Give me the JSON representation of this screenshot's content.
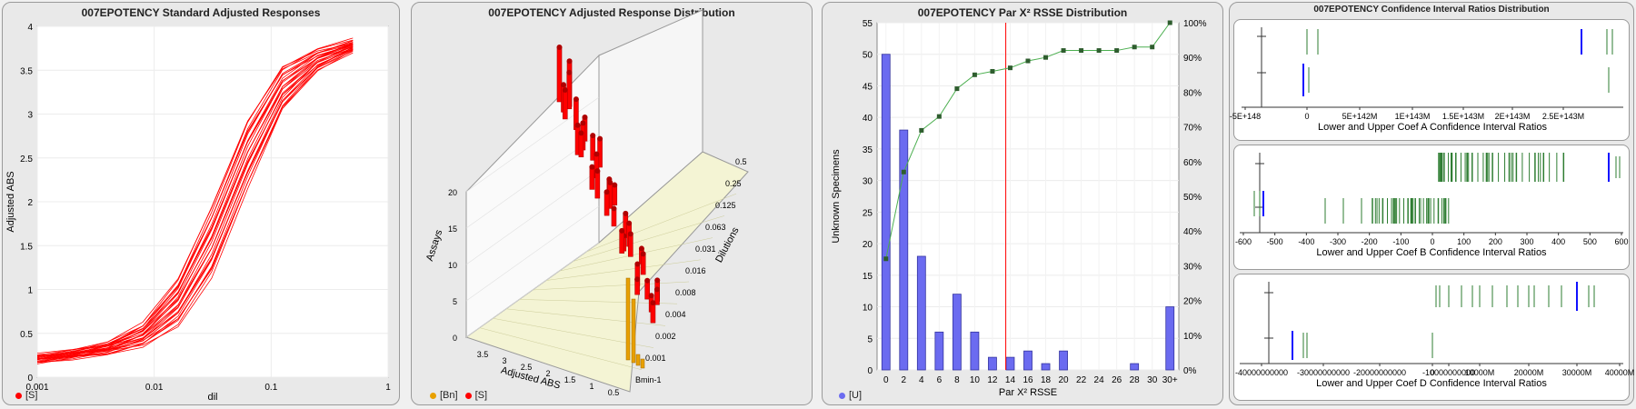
{
  "colors": {
    "red": "#ff0000",
    "darkred": "#b00000",
    "orange": "#e8a000",
    "blue": "#6b6bf0",
    "green": "#2e7d32",
    "ciblue": "#1010ff"
  },
  "panel1": {
    "title": "007EPOTENCY Standard Adjusted Responses",
    "legend": "[S]"
  },
  "panel2": {
    "title": "007EPOTENCY Adjusted Response Distribution",
    "legend_bn": "[Bn]",
    "legend_s": "[S]"
  },
  "panel3": {
    "title": "007EPOTENCY Par X² RSSE Distribution",
    "legend": "[U]"
  },
  "panel4": {
    "title": "007EPOTENCY Confidence Interval Ratios Distribution"
  },
  "chart_data": [
    {
      "type": "line",
      "title": "007EPOTENCY Standard Adjusted Responses",
      "xlabel": "dil",
      "ylabel": "Adjusted ABS",
      "xscale": "log",
      "xlim": [
        0.001,
        1
      ],
      "ylim": [
        0,
        4
      ],
      "xticks": [
        "0.001",
        "0.01",
        "0.1",
        "1"
      ],
      "yticks": [
        "0",
        "0.5",
        "1",
        "1.5",
        "2",
        "2.5",
        "3",
        "3.5",
        "4"
      ],
      "x": [
        0.001,
        0.002,
        0.004,
        0.008,
        0.016,
        0.031,
        0.063,
        0.125,
        0.25,
        0.5
      ],
      "series_center": [
        0.21,
        0.26,
        0.33,
        0.48,
        0.85,
        1.55,
        2.55,
        3.3,
        3.62,
        3.78
      ],
      "series_count": 26,
      "legend": "[S]"
    },
    {
      "type": "bar3d",
      "title": "007EPOTENCY Adjusted Response Distribution",
      "xlabel": "Adjusted ABS",
      "ylabel": "Dilutions",
      "zlabel": "Assays",
      "xticks": [
        "3.5",
        "3",
        "2.5",
        "2",
        "1.5",
        "1",
        "0.5"
      ],
      "yticks": [
        "Bmin-1",
        "0.001",
        "0.002",
        "0.004",
        "0.008",
        "0.016",
        "0.031",
        "0.063",
        "0.125",
        "0.25",
        "0.5"
      ],
      "zticks": [
        "0",
        "5",
        "10",
        "15",
        "20"
      ],
      "legend": [
        "[Bn]",
        "[S]"
      ]
    },
    {
      "type": "bar",
      "title": "007EPOTENCY Par X² RSSE Distribution",
      "xlabel": "Par X² RSSE",
      "ylabel": "Unknown Specimens",
      "categories": [
        "0",
        "2",
        "4",
        "6",
        "8",
        "10",
        "12",
        "14",
        "16",
        "18",
        "20",
        "22",
        "24",
        "26",
        "28",
        "30",
        "30+"
      ],
      "values": [
        50,
        38,
        18,
        6,
        12,
        6,
        2,
        2,
        3,
        1,
        3,
        0,
        0,
        0,
        1,
        0,
        10
      ],
      "cumulative_pct": [
        32,
        57,
        69,
        73,
        81,
        85,
        86,
        87,
        89,
        90,
        92,
        92,
        92,
        92,
        93,
        93,
        100
      ],
      "ylim": [
        0,
        55
      ],
      "yticks": [
        "0",
        "5",
        "10",
        "15",
        "20",
        "25",
        "30",
        "35",
        "40",
        "45",
        "50",
        "55"
      ],
      "y2ticks": [
        "0%",
        "10%",
        "20%",
        "30%",
        "40%",
        "50%",
        "60%",
        "70%",
        "80%",
        "90%",
        "100%"
      ],
      "reference_x": 13.5,
      "legend": "[U]"
    },
    {
      "type": "strip",
      "title": "Lower and Upper Coef A Confidence Interval Ratios",
      "xticks": [
        "-5E+148",
        "0",
        "5E+142M",
        "1E+143M",
        "1.5E+143M",
        "2E+143M",
        "2.5E+143M"
      ]
    },
    {
      "type": "strip",
      "title": "Lower and Upper Coef B Confidence Interval Ratios",
      "xticks": [
        "-600",
        "-500",
        "-400",
        "-300",
        "-200",
        "-100",
        "0",
        "100",
        "200",
        "300",
        "400",
        "500",
        "600"
      ]
    },
    {
      "type": "strip",
      "title": "Lower and Upper Coef D Confidence Interval Ratios",
      "xticks": [
        "-40000000000",
        "-30000000000",
        "-20000000000",
        "-10000000000",
        "0",
        "10000M",
        "20000M",
        "30000M",
        "40000M"
      ]
    }
  ]
}
